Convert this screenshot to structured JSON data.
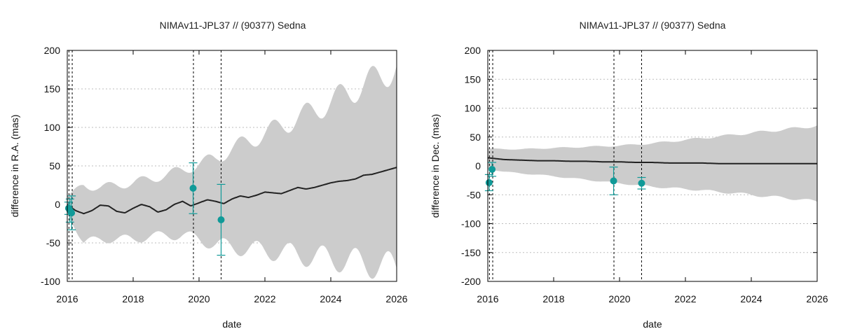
{
  "chart_data": [
    {
      "type": "line",
      "title": "NIMAv11-JPL37 // (90377) Sedna",
      "xlabel": "date",
      "ylabel": "difference in R.A. (mas)",
      "xlim": [
        2016,
        2026
      ],
      "ylim": [
        -100,
        200
      ],
      "xticks": [
        2016,
        2018,
        2020,
        2022,
        2024,
        2026
      ],
      "yticks": [
        -100,
        -50,
        0,
        50,
        100,
        150,
        200
      ],
      "grid": true,
      "vlines": [
        2016.05,
        2016.15,
        2019.83,
        2020.67
      ],
      "envelope": {
        "x": [
          2016.0,
          2016.5,
          2017.0,
          2017.5,
          2018.0,
          2018.5,
          2019.0,
          2019.5,
          2020.0,
          2020.5,
          2021.0,
          2021.5,
          2022.0,
          2022.5,
          2023.0,
          2023.5,
          2024.0,
          2024.5,
          2025.0,
          2025.5,
          2026.0
        ],
        "upper": [
          10,
          25,
          22,
          25,
          28,
          33,
          38,
          45,
          52,
          60,
          72,
          82,
          92,
          102,
          112,
          122,
          133,
          145,
          155,
          166,
          180
        ],
        "lower": [
          -10,
          -50,
          -45,
          -45,
          -45,
          -42,
          -40,
          -40,
          -45,
          -52,
          -55,
          -58,
          -60,
          -62,
          -65,
          -68,
          -70,
          -73,
          -76,
          -79,
          -83
        ]
      },
      "mean": {
        "x": [
          2016.0,
          2016.25,
          2016.5,
          2016.75,
          2017.0,
          2017.25,
          2017.5,
          2017.75,
          2018.0,
          2018.25,
          2018.5,
          2018.75,
          2019.0,
          2019.25,
          2019.5,
          2019.75,
          2020.0,
          2020.25,
          2020.5,
          2020.75,
          2021.0,
          2021.25,
          2021.5,
          2021.75,
          2022.0,
          2022.25,
          2022.5,
          2022.75,
          2023.0,
          2023.25,
          2023.5,
          2023.75,
          2024.0,
          2024.25,
          2024.5,
          2024.75,
          2025.0,
          2025.25,
          2025.5,
          2025.75,
          2026.0
        ],
        "y": [
          0,
          -8,
          -12,
          -8,
          -1,
          -2,
          -9,
          -11,
          -5,
          0,
          -3,
          -10,
          -7,
          0,
          4,
          -2,
          2,
          6,
          4,
          1,
          7,
          11,
          9,
          12,
          16,
          15,
          14,
          18,
          22,
          20,
          22,
          25,
          28,
          30,
          31,
          33,
          38,
          39,
          42,
          45,
          48
        ]
      },
      "observations": [
        {
          "x": 2016.04,
          "y": -5,
          "err": 8
        },
        {
          "x": 2016.08,
          "y": -8,
          "err": 15
        },
        {
          "x": 2016.13,
          "y": -11,
          "err": 22
        },
        {
          "x": 2019.82,
          "y": 21,
          "err": 33
        },
        {
          "x": 2020.67,
          "y": -20,
          "err": 46
        }
      ]
    },
    {
      "type": "line",
      "title": "NIMAv11-JPL37 // (90377) Sedna",
      "xlabel": "date",
      "ylabel": "difference in Dec. (mas)",
      "xlim": [
        2016,
        2026
      ],
      "ylim": [
        -200,
        200
      ],
      "xticks": [
        2016,
        2018,
        2020,
        2022,
        2024,
        2026
      ],
      "yticks": [
        -200,
        -150,
        -100,
        -50,
        0,
        50,
        100,
        150,
        200
      ],
      "grid": true,
      "vlines": [
        2016.05,
        2016.15,
        2019.83,
        2020.67
      ],
      "envelope": {
        "x": [
          2016.0,
          2016.5,
          2017.0,
          2017.5,
          2018.0,
          2018.5,
          2019.0,
          2019.5,
          2020.0,
          2020.5,
          2021.0,
          2021.5,
          2022.0,
          2022.5,
          2023.0,
          2023.5,
          2024.0,
          2024.5,
          2025.0,
          2025.5,
          2026.0
        ],
        "upper": [
          30,
          29,
          29,
          30,
          31,
          32,
          33,
          34,
          35,
          37,
          39,
          42,
          45,
          48,
          51,
          54,
          57,
          60,
          63,
          66,
          70
        ],
        "lower": [
          -5,
          -10,
          -13,
          -15,
          -18,
          -21,
          -24,
          -27,
          -30,
          -33,
          -36,
          -38,
          -40,
          -42,
          -45,
          -47,
          -50,
          -53,
          -55,
          -58,
          -62
        ]
      },
      "mean": {
        "x": [
          2016.0,
          2016.5,
          2017.0,
          2017.5,
          2018.0,
          2018.5,
          2019.0,
          2019.5,
          2020.0,
          2020.5,
          2021.0,
          2021.5,
          2022.0,
          2022.5,
          2023.0,
          2023.5,
          2024.0,
          2024.5,
          2025.0,
          2025.5,
          2026.0
        ],
        "y": [
          14,
          11,
          10,
          9,
          9,
          8,
          8,
          7,
          7,
          6,
          6,
          5,
          5,
          5,
          4,
          4,
          4,
          4,
          4,
          4,
          4
        ]
      },
      "observations": [
        {
          "x": 2016.04,
          "y": -29,
          "err": 14
        },
        {
          "x": 2016.13,
          "y": -6,
          "err": 12
        },
        {
          "x": 2019.82,
          "y": -26,
          "err": 24
        },
        {
          "x": 2020.67,
          "y": -30,
          "err": 10
        }
      ]
    }
  ]
}
